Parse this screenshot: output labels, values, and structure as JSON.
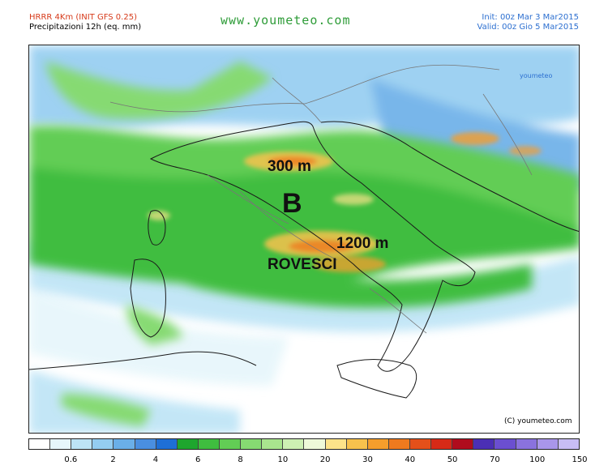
{
  "header": {
    "model": "HRRR 4Km (INIT GFS 0.25)",
    "product": "Precipitazioni 12h (eq. mm)",
    "site": "www.youmeteo.com",
    "init": "Init: 00z Mar  3   Mar2015",
    "valid": "Valid: 00z Gio  5   Mar2015"
  },
  "map": {
    "labels": {
      "altitude_north": "300 m",
      "low_pressure": "B",
      "altitude_south": "1200 m",
      "showers": "ROVESCI"
    },
    "logo": "youmeteo",
    "copyright": "(C) youmeteo.com"
  },
  "legend": {
    "colors": [
      "#ffffff",
      "#e6f6fb",
      "#bde4f6",
      "#94cdf1",
      "#6aafe8",
      "#4a8fe0",
      "#1e6fd6",
      "#1ea62e",
      "#3fbd3f",
      "#62cd55",
      "#86da72",
      "#a9e58e",
      "#cdf0b3",
      "#eef9d9",
      "#fce38a",
      "#f7c24d",
      "#f59e2c",
      "#ef7a1e",
      "#e4501a",
      "#d62a17",
      "#b00c1d",
      "#4b2fb5",
      "#6b4fd0",
      "#8a72de",
      "#a996ea",
      "#c8bdf4"
    ],
    "ticks": [
      "0.6",
      "2",
      "4",
      "6",
      "8",
      "10",
      "20",
      "30",
      "40",
      "50",
      "70",
      "100",
      "150"
    ]
  }
}
